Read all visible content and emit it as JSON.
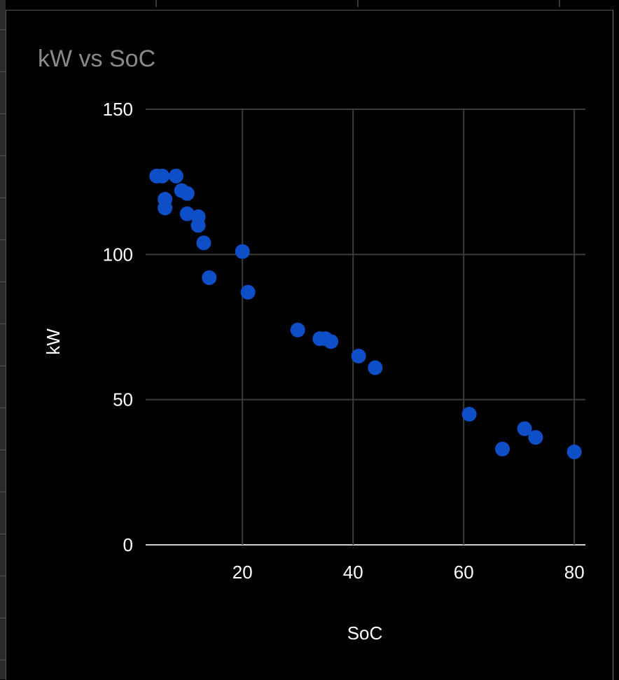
{
  "chart_data": {
    "type": "scatter",
    "title": "kW vs SoC",
    "xlabel": "SoC",
    "ylabel": "kW",
    "xlim": [
      2.5,
      82
    ],
    "ylim": [
      0,
      150
    ],
    "xticks": [
      20,
      40,
      60,
      80
    ],
    "yticks": [
      0,
      50,
      100,
      150
    ],
    "grid": true,
    "legend": "none",
    "marker_color": "#0e4fc8",
    "points": [
      {
        "x": 4.5,
        "y": 127
      },
      {
        "x": 5.5,
        "y": 127
      },
      {
        "x": 6,
        "y": 119
      },
      {
        "x": 6,
        "y": 116
      },
      {
        "x": 8,
        "y": 127
      },
      {
        "x": 9,
        "y": 122
      },
      {
        "x": 10,
        "y": 121
      },
      {
        "x": 10,
        "y": 114
      },
      {
        "x": 12,
        "y": 113
      },
      {
        "x": 12,
        "y": 110
      },
      {
        "x": 13,
        "y": 104
      },
      {
        "x": 14,
        "y": 92
      },
      {
        "x": 20,
        "y": 101
      },
      {
        "x": 21,
        "y": 87
      },
      {
        "x": 30,
        "y": 74
      },
      {
        "x": 34,
        "y": 71
      },
      {
        "x": 35,
        "y": 71
      },
      {
        "x": 36,
        "y": 70
      },
      {
        "x": 41,
        "y": 65
      },
      {
        "x": 44,
        "y": 61
      },
      {
        "x": 61,
        "y": 45
      },
      {
        "x": 67,
        "y": 33
      },
      {
        "x": 71,
        "y": 40
      },
      {
        "x": 73,
        "y": 37
      },
      {
        "x": 80,
        "y": 32
      }
    ]
  }
}
